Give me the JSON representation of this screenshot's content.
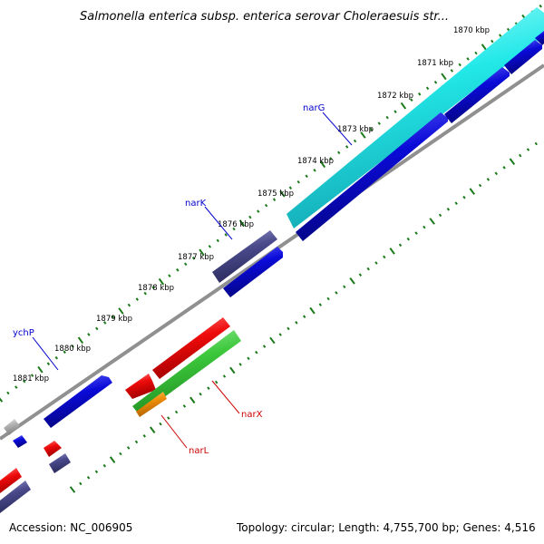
{
  "title": "Salmonella enterica subsp. enterica serovar Choleraesuis str...",
  "footer": {
    "accession": "Accession: NC_006905",
    "summary": "Topology: circular; Length: 4,755,700 bp; Genes: 4,516"
  },
  "tick_labels": [
    "1870 kbp",
    "1871 kbp",
    "1872 kbp",
    "1873 kbp",
    "1874 kbp",
    "1875 kbp",
    "1876 kbp",
    "1877 kbp",
    "1878 kbp",
    "1879 kbp",
    "1880 kbp",
    "1881 kbp"
  ],
  "gene_labels": {
    "narG": "narG",
    "narK": "narK",
    "ychP": "ychP",
    "narX": "narX",
    "narL": "narL"
  },
  "colors": {
    "cyan_gene": "#22e8e8",
    "blue_gene": "#0a0ad8",
    "slate_gene": "#4a4a8c",
    "red_gene": "#ee0a0a",
    "green_gene": "#3cc83c",
    "orange_gene": "#f0900a",
    "gray_gene": "#b4b4b4",
    "backbone": "#909090",
    "tick": "#1a7a1a",
    "label_blue": "#0000cc",
    "label_red": "#cc0000"
  }
}
